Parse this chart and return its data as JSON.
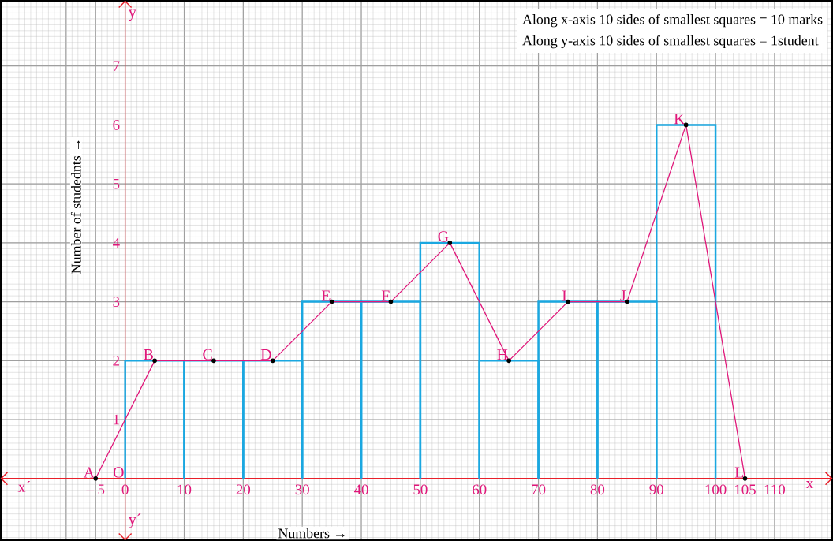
{
  "chart_data": {
    "type": "histogram",
    "xlabel": "Numbers →",
    "ylabel": "Number of studednts →",
    "bins": [
      0,
      10,
      20,
      30,
      40,
      50,
      60,
      70,
      80,
      90,
      100
    ],
    "values": [
      2,
      2,
      2,
      3,
      3,
      4,
      2,
      3,
      3,
      6
    ],
    "color": "#1aa7e0",
    "series": [
      {
        "type": "line",
        "color": "#e0177a",
        "marker": "circle",
        "x": [
          -5,
          5,
          15,
          25,
          35,
          45,
          55,
          65,
          75,
          85,
          95,
          105
        ],
        "values": [
          0,
          2,
          2,
          2,
          3,
          3,
          4,
          2,
          3,
          3,
          6,
          0
        ]
      }
    ],
    "xlim": [
      -21,
      119.7
    ],
    "ylim": [
      -1.04,
      8.1
    ],
    "xticks": [
      {
        "value": -10,
        "label": null
      },
      {
        "value": -5,
        "label": "– 5"
      },
      0,
      10,
      20,
      30,
      40,
      50,
      60,
      70,
      80,
      90,
      100,
      105,
      110
    ],
    "yticks": [
      1,
      2,
      3,
      4,
      5,
      6,
      7
    ],
    "grid": true,
    "annotations": [
      "Along x-axis 10 sides of smallest squares = 10 marks",
      "Along y-axis 10 sides of smallest squares = 1student",
      {
        "text": "A",
        "x": -5,
        "y": 0
      },
      {
        "text": "B",
        "x": 5,
        "y": 2
      },
      {
        "text": "C",
        "x": 15,
        "y": 2
      },
      {
        "text": "D",
        "x": 25,
        "y": 2
      },
      {
        "text": "E",
        "x": 35,
        "y": 3
      },
      {
        "text": "F",
        "x": 45,
        "y": 3
      },
      {
        "text": "G",
        "x": 55,
        "y": 4
      },
      {
        "text": "H",
        "x": 65,
        "y": 2
      },
      {
        "text": "I",
        "x": 75,
        "y": 3
      },
      {
        "text": "J",
        "x": 85,
        "y": 3
      },
      {
        "text": "K",
        "x": 95,
        "y": 6
      },
      {
        "text": "L",
        "x": 105,
        "y": 0
      },
      {
        "text": "O",
        "x": 0,
        "y": 0
      },
      "x´",
      "x",
      "y",
      "y´"
    ]
  }
}
